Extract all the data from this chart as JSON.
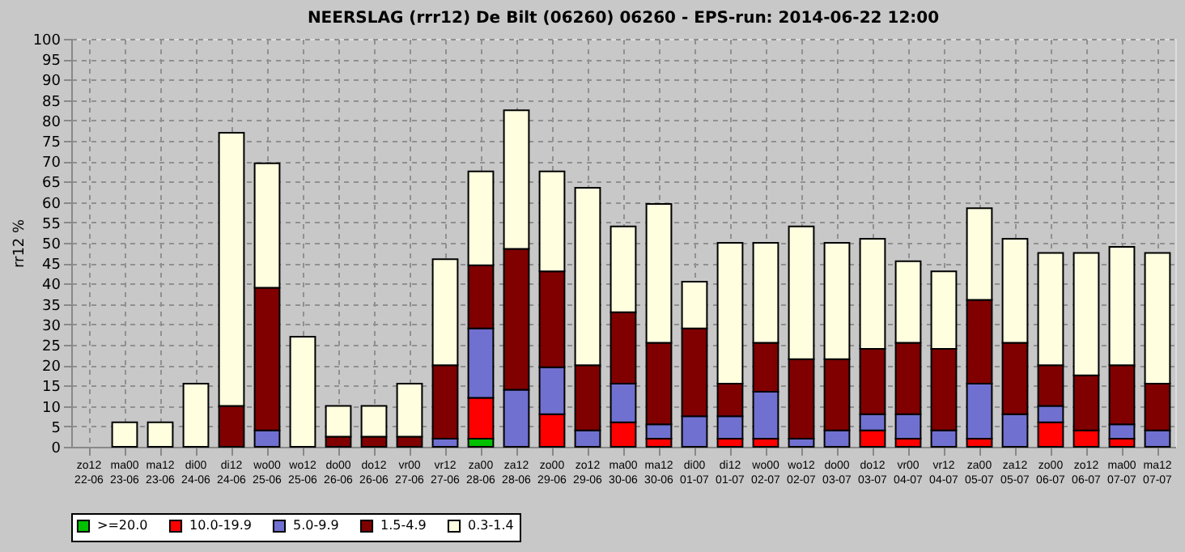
{
  "chart_data": {
    "type": "bar",
    "stacked": true,
    "title": "NEERSLAG (rrr12) De Bilt (06260) 06260 - EPS-run: 2014-06-22 12:00",
    "ylabel": "rr12 %",
    "categories": [
      "zo12 22-06",
      "ma00 23-06",
      "ma12 23-06",
      "di00 24-06",
      "di12 24-06",
      "wo00 25-06",
      "wo12 25-06",
      "do00 26-06",
      "do12 26-06",
      "vr00 27-06",
      "vr12 27-06",
      "za00 28-06",
      "za12 28-06",
      "zo00 29-06",
      "zo12 29-06",
      "ma00 30-06",
      "ma12 30-06",
      "di00 01-07",
      "di12 01-07",
      "wo00 02-07",
      "wo12 02-07",
      "do00 03-07",
      "do12 03-07",
      "vr00 04-07",
      "vr12 04-07",
      "za00 05-07",
      "za12 05-07",
      "zo00 06-07",
      "zo12 06-07",
      "ma00 07-07",
      "ma12 07-07"
    ],
    "series": [
      {
        "name": ">=20.0",
        "color": "#00c000",
        "values": [
          0,
          0,
          0,
          0,
          0,
          0,
          0,
          0,
          0,
          0,
          0,
          2,
          0,
          0,
          0,
          0,
          0,
          0,
          0,
          0,
          0,
          0,
          0,
          0,
          0,
          0,
          0,
          0,
          0,
          0,
          0
        ]
      },
      {
        "name": "10.0-19.9",
        "color": "#ff0000",
        "values": [
          0,
          0,
          0,
          0,
          0,
          0,
          0,
          0,
          0,
          0,
          0,
          10,
          0,
          8,
          0,
          6,
          2,
          0,
          2,
          2,
          0,
          0,
          4,
          2,
          0,
          2,
          0,
          6,
          4,
          2,
          0
        ]
      },
      {
        "name": "5.0-9.9",
        "color": "#7070d0",
        "values": [
          0,
          0,
          0,
          0,
          0,
          4,
          0,
          0,
          0,
          0,
          2,
          17,
          14,
          11.5,
          4,
          9.5,
          3.5,
          7.5,
          5.5,
          11.5,
          2,
          4,
          4,
          6,
          4,
          13.5,
          8,
          4,
          0,
          3.5,
          4
        ]
      },
      {
        "name": "1.5-4.9",
        "color": "#800000",
        "values": [
          0,
          0,
          0,
          0,
          10,
          35,
          0,
          2.5,
          2.5,
          2.5,
          18,
          15.5,
          34.5,
          23.5,
          16,
          17.5,
          20,
          21.5,
          8,
          12,
          19.5,
          17.5,
          16,
          17.5,
          20,
          20.5,
          17.5,
          10,
          13.5,
          14.5,
          11.5
        ]
      },
      {
        "name": "0.3-1.4",
        "color": "#ffffe0",
        "values": [
          0,
          6,
          6,
          15.5,
          67,
          30.5,
          27,
          7.5,
          7.5,
          13,
          26,
          23,
          34,
          24.5,
          43.5,
          21,
          34,
          11.5,
          34.5,
          24.5,
          32.5,
          28.5,
          27,
          20,
          19,
          22.5,
          25.5,
          27.5,
          30,
          29,
          32
        ]
      }
    ],
    "ylim": [
      0,
      100
    ],
    "yticks": [
      0,
      5,
      10,
      15,
      20,
      25,
      30,
      35,
      40,
      45,
      50,
      55,
      60,
      65,
      70,
      75,
      80,
      85,
      90,
      95,
      100
    ],
    "grid": true,
    "legend": "bottom"
  }
}
